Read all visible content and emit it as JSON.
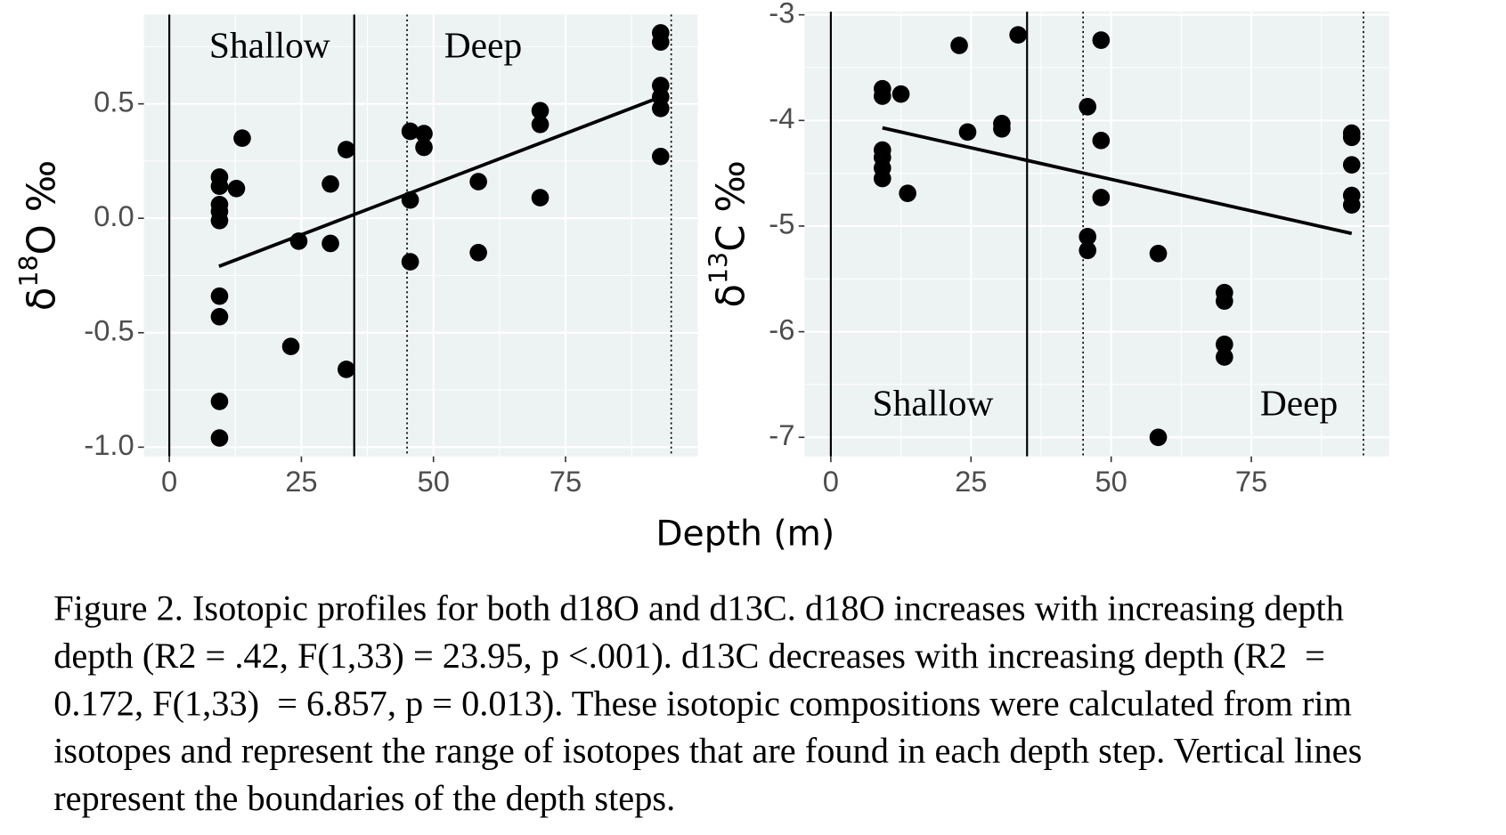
{
  "chart_data": [
    {
      "type": "scatter",
      "ylabel": {
        "prefix": "δ",
        "sup": "18",
        "suffix": "O ‰"
      },
      "xlim": [
        -4.8,
        100
      ],
      "xticks": [
        0,
        25,
        50,
        75
      ],
      "ylim": [
        -1.04,
        0.89
      ],
      "yticks": [
        0.5,
        {
          "value": 0,
          "label": "0.0"
        },
        -0.5,
        {
          "value": -1,
          "label": "-1.0"
        }
      ],
      "grid": true,
      "color": "#000000",
      "x": [
        9.5,
        9.5,
        9.5,
        9.5,
        9.5,
        9.5,
        9.5,
        9.5,
        9.5,
        12.7,
        13.8,
        23,
        24.5,
        30.5,
        30.5,
        33.5,
        33.5,
        45.6,
        45.6,
        45.6,
        48.2,
        48.2,
        58.5,
        58.5,
        70.2,
        70.2,
        70.2,
        93,
        93,
        93,
        93,
        93,
        93
      ],
      "y": [
        0.18,
        0.14,
        0.06,
        0.03,
        -0.01,
        -0.34,
        -0.43,
        -0.8,
        -0.96,
        0.13,
        0.35,
        -0.56,
        -0.1,
        0.15,
        -0.11,
        0.3,
        -0.66,
        0.38,
        0.08,
        -0.19,
        0.37,
        0.31,
        0.16,
        -0.15,
        0.47,
        0.41,
        0.09,
        0.81,
        0.77,
        0.58,
        0.53,
        0.48,
        0.27
      ],
      "trend": {
        "x": [
          9.4,
          93
        ],
        "y": [
          -0.21,
          0.53
        ]
      },
      "vlines": [
        {
          "x": 0,
          "style": "solid"
        },
        {
          "x": 35,
          "style": "solid"
        },
        {
          "x": 45,
          "style": "dotted"
        },
        {
          "x": 95,
          "style": "dotted"
        }
      ],
      "annotations": [
        {
          "text": "Shallow",
          "x": 19,
          "y": 0.74
        },
        {
          "text": "Deep",
          "x": 59.4,
          "y": 0.74
        }
      ]
    },
    {
      "type": "scatter",
      "ylabel": {
        "prefix": "δ",
        "sup": "13",
        "suffix": "C ‰"
      },
      "xlim": [
        -4.7,
        99.6
      ],
      "xticks": [
        0,
        25,
        50,
        75
      ],
      "ylim": [
        -7.18,
        -2.97
      ],
      "yticks": [
        -3,
        -4,
        -5,
        -6,
        -7
      ],
      "grid": true,
      "color": "#000000",
      "x": [
        9.2,
        9.2,
        9.2,
        9.2,
        9.2,
        9.2,
        12.5,
        13.7,
        22.9,
        24.4,
        30.5,
        30.5,
        33.4,
        45.8,
        45.8,
        45.8,
        48.2,
        48.2,
        48.2,
        58.4,
        58.4,
        70.2,
        70.2,
        70.2,
        70.2,
        92.9,
        92.9,
        92.9,
        92.9,
        92.9
      ],
      "y": [
        -3.7,
        -3.77,
        -4.28,
        -4.35,
        -4.45,
        -4.55,
        -3.75,
        -4.69,
        -3.29,
        -4.11,
        -4.03,
        -4.08,
        -3.19,
        -3.87,
        -5.1,
        -5.23,
        -3.24,
        -4.19,
        -4.73,
        -5.26,
        -7,
        -5.63,
        -5.71,
        -6.12,
        -6.24,
        -4.12,
        -4.16,
        -4.42,
        -4.71,
        -4.8
      ],
      "trend": {
        "x": [
          9.2,
          92.9
        ],
        "y": [
          -4.07,
          -5.07
        ]
      },
      "vlines": [
        {
          "x": 0,
          "style": "solid"
        },
        {
          "x": 35,
          "style": "solid"
        },
        {
          "x": 45,
          "style": "dotted"
        },
        {
          "x": 95,
          "style": "dotted"
        }
      ],
      "annotations": [
        {
          "text": "Shallow",
          "x": 18.2,
          "y": -6.71
        },
        {
          "text": "Deep",
          "x": 83.5,
          "y": -6.71
        }
      ]
    }
  ],
  "xlabel": "Depth (m)",
  "caption": [
    "Figure 2. Isotopic profiles for both d18O and d13C. d18O increases with increasing depth",
    "depth (R2 = .42, F(1,33) = 23.95, p <.001). d13C decreases with increasing depth (R2  =",
    "0.172, F(1,33)  = 6.857, p = 0.013). These isotopic compositions were calculated from rim",
    "isotopes and represent the range of isotopes that are found in each depth step. Vertical lines",
    "represent the boundaries of the depth steps."
  ]
}
